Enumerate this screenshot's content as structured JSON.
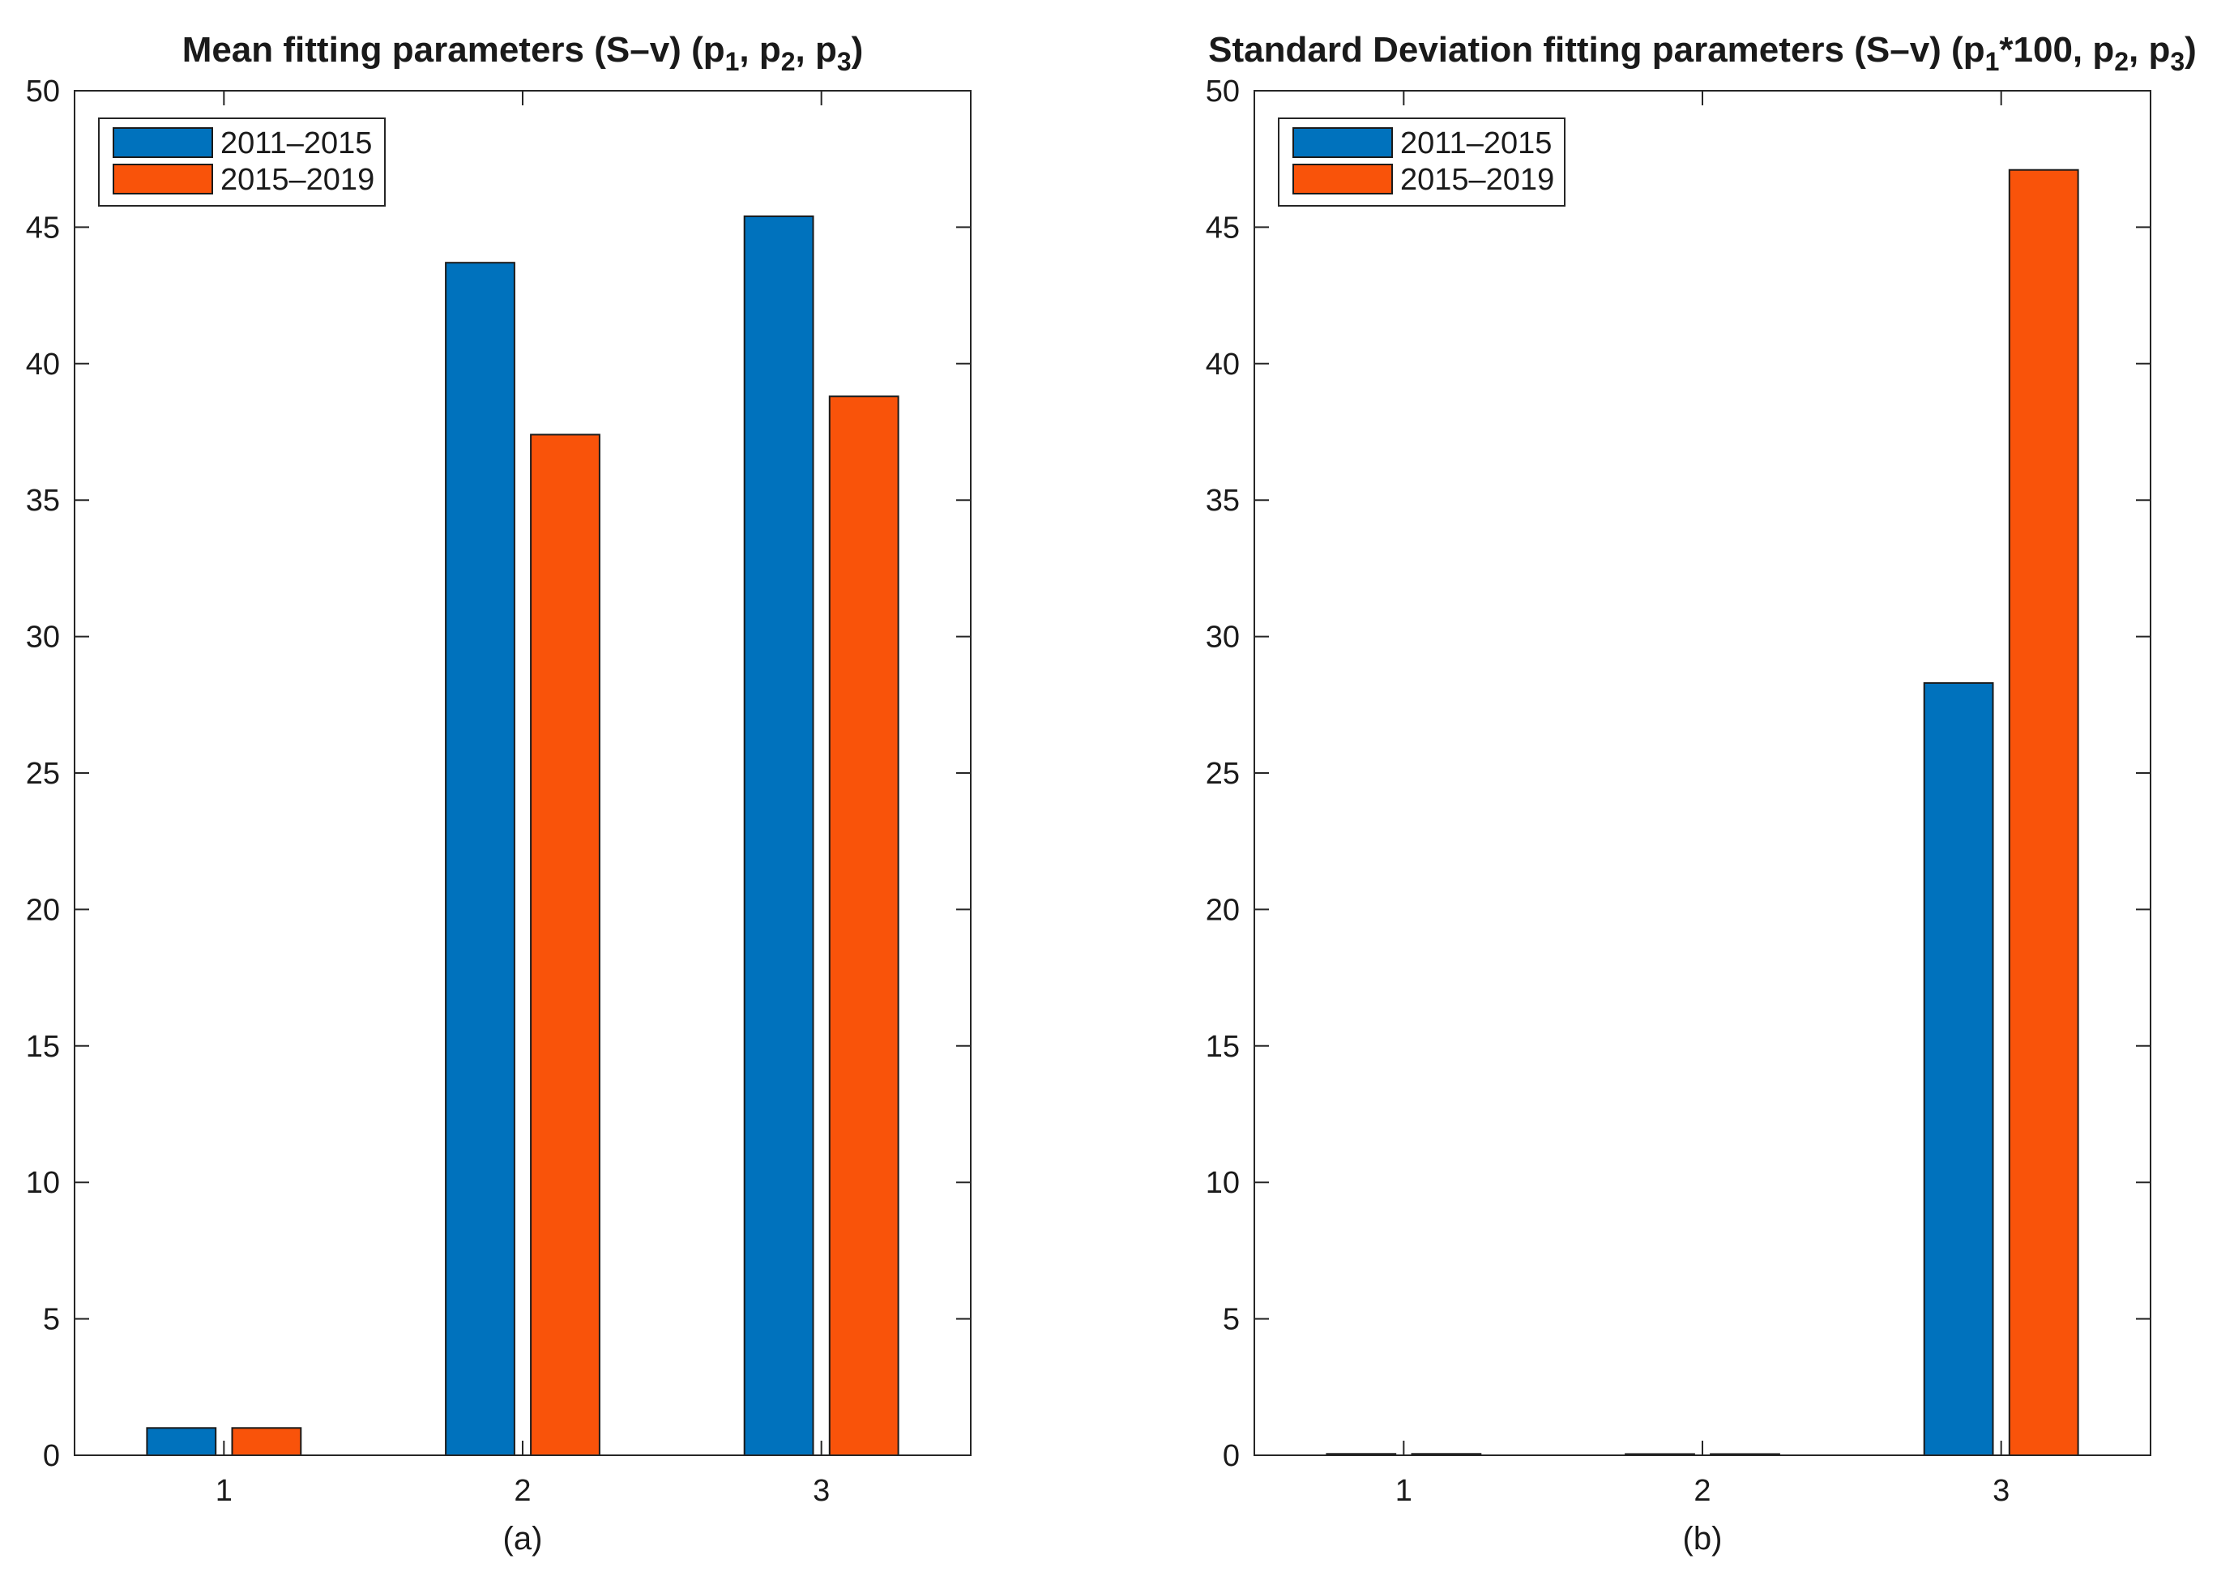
{
  "chart_data": [
    {
      "type": "bar",
      "title_main": "Mean fitting parameters (S–v) (p",
      "title_parts": [
        {
          "text": "Mean fitting parameters (S–v) (p",
          "sub": false
        },
        {
          "text": "1",
          "sub": true
        },
        {
          "text": ", p",
          "sub": false
        },
        {
          "text": "2",
          "sub": true
        },
        {
          "text": ", p",
          "sub": false
        },
        {
          "text": "3",
          "sub": true
        },
        {
          "text": ")",
          "sub": false
        }
      ],
      "caption": "(a)",
      "xlabel": "",
      "ylabel": "",
      "categories": [
        "1",
        "2",
        "3"
      ],
      "ylim": [
        0,
        50
      ],
      "yticks": [
        "0",
        "5",
        "10",
        "15",
        "20",
        "25",
        "30",
        "35",
        "40",
        "45",
        "50"
      ],
      "series": [
        {
          "name": "2011–2015",
          "color": "#0072BD",
          "values": [
            1.0,
            43.7,
            45.4
          ]
        },
        {
          "name": "2015–2019",
          "color": "#F9530A",
          "values": [
            1.0,
            37.4,
            38.8
          ]
        }
      ],
      "legend": "top-left"
    },
    {
      "type": "bar",
      "title_parts": [
        {
          "text": "Standard Deviation fitting parameters (S–v) (p",
          "sub": false
        },
        {
          "text": "1",
          "sub": true
        },
        {
          "text": "*100, p",
          "sub": false
        },
        {
          "text": "2",
          "sub": true
        },
        {
          "text": ", p",
          "sub": false
        },
        {
          "text": "3",
          "sub": true
        },
        {
          "text": ")",
          "sub": false
        }
      ],
      "caption": "(b)",
      "xlabel": "",
      "ylabel": "",
      "categories": [
        "1",
        "2",
        "3"
      ],
      "ylim": [
        0,
        50
      ],
      "yticks": [
        "0",
        "5",
        "10",
        "15",
        "20",
        "25",
        "30",
        "35",
        "40",
        "45",
        "50"
      ],
      "series": [
        {
          "name": "2011–2015",
          "color": "#0072BD",
          "values": [
            0.05,
            0.0,
            28.3
          ]
        },
        {
          "name": "2015–2019",
          "color": "#F9530A",
          "values": [
            0.05,
            0.0,
            47.1
          ]
        }
      ],
      "legend": "top-left"
    }
  ]
}
